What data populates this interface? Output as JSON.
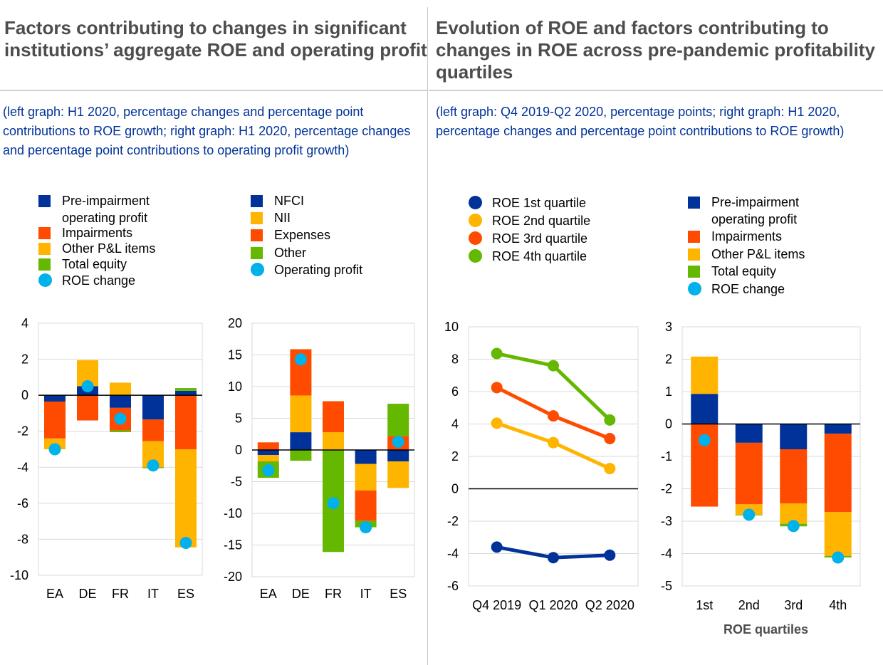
{
  "colors": {
    "dark_blue": "#003299",
    "yellow": "#ffb400",
    "orange": "#ff4b00",
    "green": "#65b800",
    "light_blue": "#00b1ea",
    "title_grey": "#4d4d4d",
    "grid": "#d9d9d9"
  },
  "left_panel": {
    "title": "Factors contributing to changes in significant institutions’ aggregate ROE and operating profit",
    "subtitle": "(left graph: H1 2020, percentage changes and percentage point contributions to ROE growth; right graph: H1 2020, percentage changes and percentage point contributions to operating profit growth)",
    "legend_a": [
      {
        "label": "Pre-impairment operating profit",
        "color": "#003299",
        "shape": "square"
      },
      {
        "label": "Impairments",
        "color": "#ff4b00",
        "shape": "square"
      },
      {
        "label": "Other P&L items",
        "color": "#ffb400",
        "shape": "square"
      },
      {
        "label": "Total equity",
        "color": "#65b800",
        "shape": "square"
      },
      {
        "label": "ROE change",
        "color": "#00b1ea",
        "shape": "circle"
      }
    ],
    "legend_b": [
      {
        "label": "NFCI",
        "color": "#003299",
        "shape": "square"
      },
      {
        "label": "NII",
        "color": "#ffb400",
        "shape": "square"
      },
      {
        "label": "Expenses",
        "color": "#ff4b00",
        "shape": "square"
      },
      {
        "label": "Other",
        "color": "#65b800",
        "shape": "square"
      },
      {
        "label": "Operating profit",
        "color": "#00b1ea",
        "shape": "circle"
      }
    ]
  },
  "right_panel": {
    "title": "Evolution of ROE and factors contributing to changes in ROE across pre-pandemic profitability quartiles",
    "subtitle": "(left graph: Q4 2019-Q2 2020, percentage points; right graph: H1 2020, percentage changes and percentage point contributions to ROE growth)",
    "legend_line": [
      {
        "label": "ROE 1st quartile",
        "color": "#003299"
      },
      {
        "label": "ROE 2nd quartile",
        "color": "#ffb400"
      },
      {
        "label": "ROE 3rd quartile",
        "color": "#ff4b00"
      },
      {
        "label": "ROE 4th quartile",
        "color": "#65b800"
      }
    ],
    "legend_d": [
      {
        "label": "Pre-impairment operating profit",
        "color": "#003299",
        "shape": "square"
      },
      {
        "label": "Impairments",
        "color": "#ff4b00",
        "shape": "square"
      },
      {
        "label": "Other P&L items",
        "color": "#ffb400",
        "shape": "square"
      },
      {
        "label": "Total equity",
        "color": "#65b800",
        "shape": "square"
      },
      {
        "label": "ROE change",
        "color": "#00b1ea",
        "shape": "circle"
      }
    ],
    "chart_d_xtitle": "ROE quartiles"
  },
  "chart_data": [
    {
      "type": "bar",
      "stacked": true,
      "categories": [
        "EA",
        "DE",
        "FR",
        "IT",
        "ES"
      ],
      "ylim": [
        -10,
        4
      ],
      "yticks": [
        -10,
        -8,
        -6,
        -4,
        -2,
        0,
        2,
        4
      ],
      "grid": true,
      "series": [
        {
          "name": "Pre-impairment operating profit",
          "color": "#003299",
          "values": [
            -0.35,
            0.5,
            -0.7,
            -1.35,
            0.25
          ]
        },
        {
          "name": "Impairments",
          "color": "#ff4b00",
          "values": [
            -2.05,
            -1.4,
            -1.25,
            -1.2,
            -3.0
          ]
        },
        {
          "name": "Other P&L items",
          "color": "#ffb400",
          "values": [
            -0.6,
            1.45,
            0.7,
            -1.45,
            -5.45
          ]
        },
        {
          "name": "Total equity",
          "color": "#65b800",
          "values": [
            0.0,
            0.0,
            -0.1,
            -0.05,
            0.15
          ]
        }
      ],
      "markers": {
        "name": "ROE change",
        "color": "#00b1ea",
        "values": [
          -3.0,
          0.5,
          -1.3,
          -3.9,
          -8.2
        ]
      }
    },
    {
      "type": "bar",
      "stacked": true,
      "categories": [
        "EA",
        "DE",
        "FR",
        "IT",
        "ES"
      ],
      "ylim": [
        -20,
        20
      ],
      "yticks": [
        -20,
        -15,
        -10,
        -5,
        0,
        5,
        10,
        15,
        20
      ],
      "grid": true,
      "series": [
        {
          "name": "NFCI",
          "color": "#003299",
          "values": [
            -0.8,
            2.8,
            0.0,
            -2.2,
            -1.8
          ]
        },
        {
          "name": "NII",
          "color": "#ffb400",
          "values": [
            -1.0,
            5.8,
            2.8,
            -4.2,
            -4.2
          ]
        },
        {
          "name": "Expenses",
          "color": "#ff4b00",
          "values": [
            1.2,
            7.3,
            4.9,
            -4.8,
            2.2
          ]
        },
        {
          "name": "Other",
          "color": "#65b800",
          "values": [
            -2.6,
            -1.7,
            -16.1,
            -1.0,
            5.1
          ]
        }
      ],
      "markers": {
        "name": "Operating profit",
        "color": "#00b1ea",
        "values": [
          -3.2,
          14.3,
          -8.4,
          -12.2,
          1.3
        ]
      }
    },
    {
      "type": "line",
      "x": [
        "Q4 2019",
        "Q1 2020",
        "Q2 2020"
      ],
      "ylim": [
        -6,
        10
      ],
      "yticks": [
        -6,
        -4,
        -2,
        0,
        2,
        4,
        6,
        8,
        10
      ],
      "grid": true,
      "series": [
        {
          "name": "ROE 1st quartile",
          "color": "#003299",
          "values": [
            -3.6,
            -4.25,
            -4.1
          ]
        },
        {
          "name": "ROE 2nd quartile",
          "color": "#ffb400",
          "values": [
            4.05,
            2.85,
            1.25
          ]
        },
        {
          "name": "ROE 3rd quartile",
          "color": "#ff4b00",
          "values": [
            6.25,
            4.5,
            3.1
          ]
        },
        {
          "name": "ROE 4th quartile",
          "color": "#65b800",
          "values": [
            8.35,
            7.6,
            4.25
          ]
        }
      ]
    },
    {
      "type": "bar",
      "stacked": true,
      "categories": [
        "1st",
        "2nd",
        "3rd",
        "4th"
      ],
      "xlabel": "ROE quartiles",
      "ylim": [
        -5,
        3
      ],
      "yticks": [
        -5,
        -4,
        -3,
        -2,
        -1,
        0,
        1,
        2,
        3
      ],
      "grid": true,
      "series": [
        {
          "name": "Pre-impairment operating profit",
          "color": "#003299",
          "values": [
            0.93,
            -0.58,
            -0.78,
            -0.3
          ]
        },
        {
          "name": "Impairments",
          "color": "#ff4b00",
          "values": [
            -2.55,
            -1.9,
            -1.67,
            -2.42
          ]
        },
        {
          "name": "Other P&L items",
          "color": "#ffb400",
          "values": [
            1.15,
            -0.32,
            -0.63,
            -1.35
          ]
        },
        {
          "name": "Total equity",
          "color": "#65b800",
          "values": [
            0.0,
            -0.02,
            -0.08,
            -0.05
          ]
        }
      ],
      "markers": {
        "name": "ROE change",
        "color": "#00b1ea",
        "values": [
          -0.5,
          -2.8,
          -3.15,
          -4.12
        ]
      }
    }
  ]
}
